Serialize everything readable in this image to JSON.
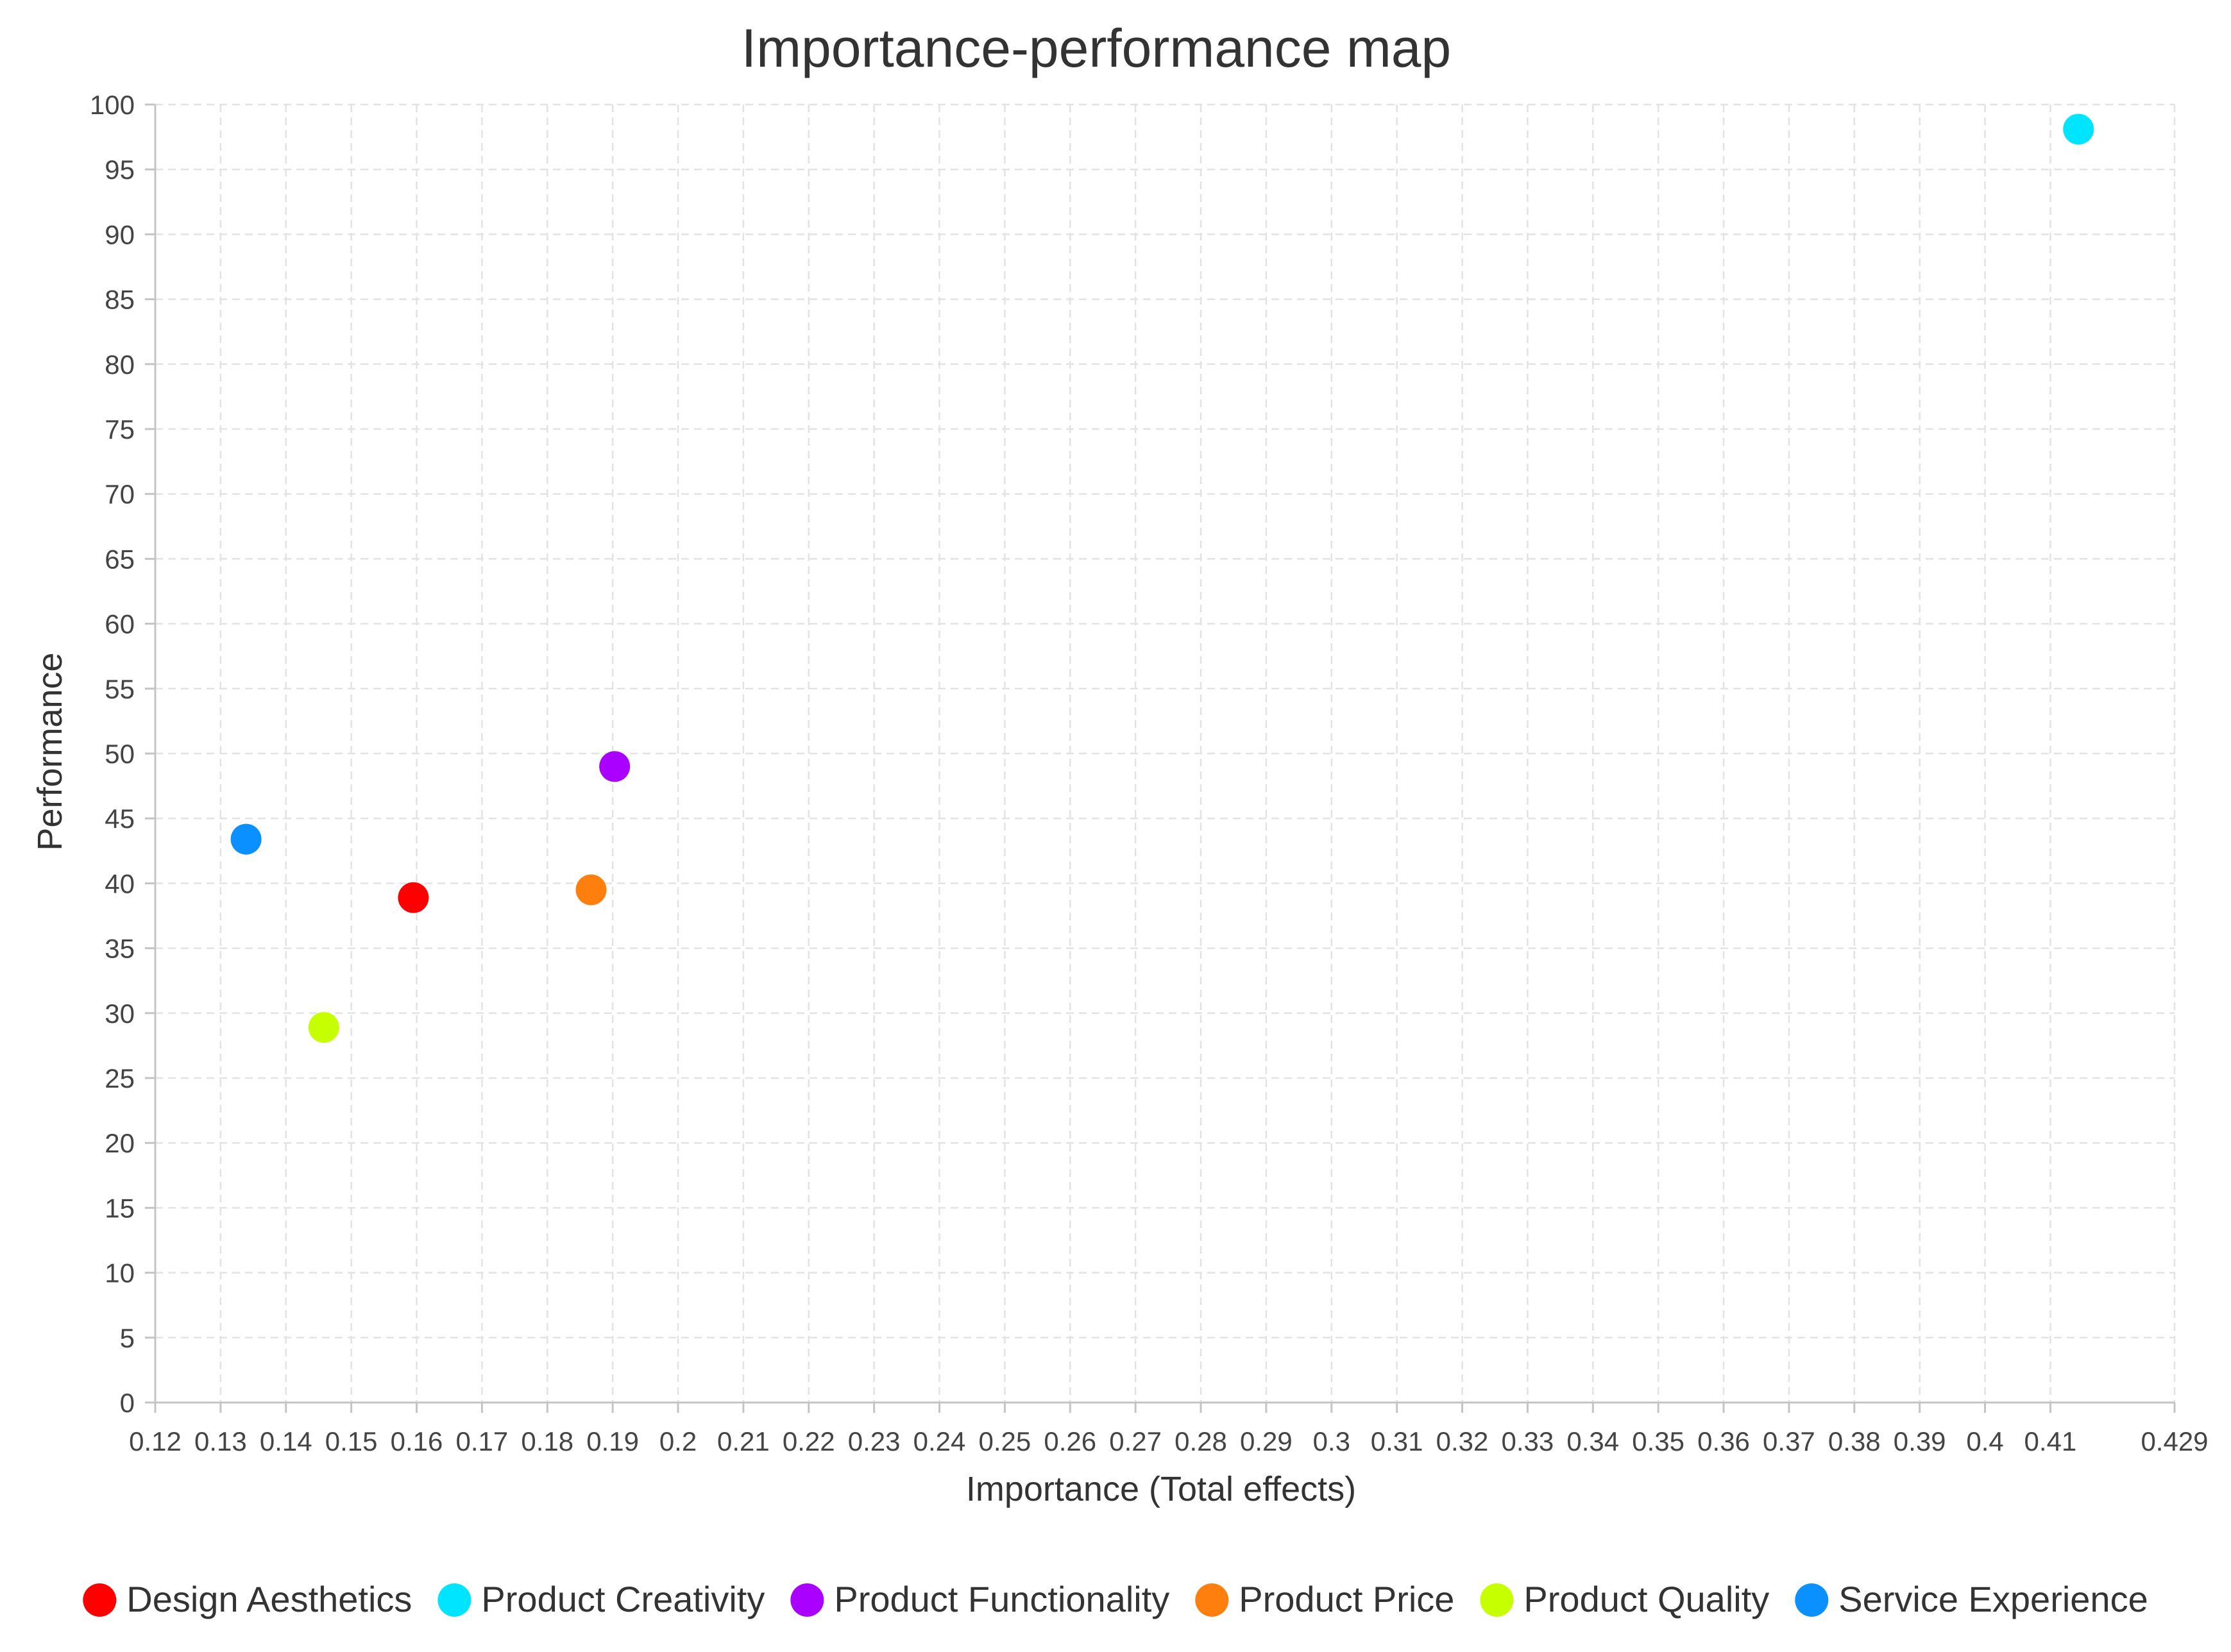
{
  "chart_data": {
    "type": "scatter",
    "title": "Importance-performance map",
    "xlabel": "Importance (Total effects)",
    "ylabel": "Performance",
    "xlim": [
      0.12,
      0.429
    ],
    "ylim": [
      0,
      100
    ],
    "x_ticks": [
      "0.12",
      "0.13",
      "0.14",
      "0.15",
      "0.16",
      "0.17",
      "0.18",
      "0.19",
      "0.2",
      "0.21",
      "0.22",
      "0.23",
      "0.24",
      "0.25",
      "0.26",
      "0.27",
      "0.28",
      "0.29",
      "0.3",
      "0.31",
      "0.32",
      "0.33",
      "0.34",
      "0.35",
      "0.36",
      "0.37",
      "0.38",
      "0.39",
      "0.4",
      "0.41",
      "0.429"
    ],
    "y_ticks": [
      "0",
      "5",
      "10",
      "15",
      "20",
      "25",
      "30",
      "35",
      "40",
      "45",
      "50",
      "55",
      "60",
      "65",
      "70",
      "75",
      "80",
      "85",
      "90",
      "95",
      "100"
    ],
    "grid": true,
    "legend_position": "bottom",
    "series": [
      {
        "name": "Design Aesthetics",
        "color": "#ff0000",
        "x": 0.1595,
        "y": 38.9
      },
      {
        "name": "Product Creativity",
        "color": "#00e5ff",
        "x": 0.4143,
        "y": 98.1
      },
      {
        "name": "Product Functionality",
        "color": "#aa00ff",
        "x": 0.1903,
        "y": 49.0
      },
      {
        "name": "Product Price",
        "color": "#ff7f0e",
        "x": 0.1867,
        "y": 39.5
      },
      {
        "name": "Product Quality",
        "color": "#c6ff00",
        "x": 0.1458,
        "y": 28.9
      },
      {
        "name": "Service Experience",
        "color": "#0a91ff",
        "x": 0.1339,
        "y": 43.4
      }
    ]
  }
}
